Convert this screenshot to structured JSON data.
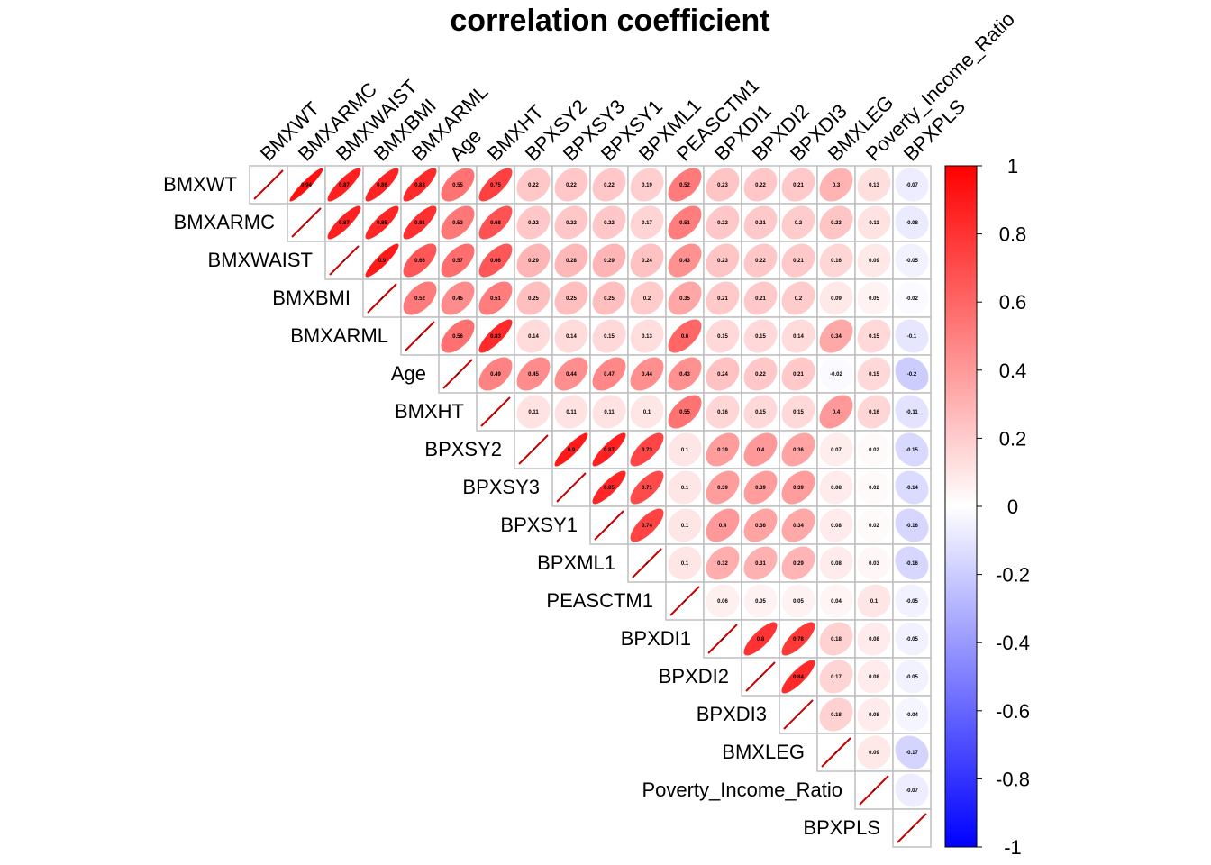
{
  "chart_data": {
    "type": "heatmap",
    "subtype": "correlation-ellipse-upper",
    "title": "correlation coefficient",
    "variables": [
      "BMXWT",
      "BMXARMC",
      "BMXWAIST",
      "BMXBMI",
      "BMXARML",
      "Age",
      "BMXHT",
      "BPXSY2",
      "BPXSY3",
      "BPXSY1",
      "BPXML1",
      "PEASCTM1",
      "BPXDI1",
      "BPXDI2",
      "BPXDI3",
      "BMXLEG",
      "Poverty_Income_Ratio",
      "BPXPLS"
    ],
    "matrix": [
      [
        1,
        0.94,
        0.87,
        0.86,
        0.83,
        0.55,
        0.75,
        0.22,
        0.22,
        0.22,
        0.19,
        0.52,
        0.23,
        0.22,
        0.21,
        0.3,
        0.13,
        -0.07
      ],
      [
        null,
        1,
        0.87,
        0.85,
        0.81,
        0.53,
        0.68,
        0.22,
        0.22,
        0.22,
        0.17,
        0.51,
        0.22,
        0.21,
        0.2,
        0.23,
        0.11,
        -0.08
      ],
      [
        null,
        null,
        1,
        0.9,
        0.66,
        0.57,
        0.66,
        0.29,
        0.28,
        0.29,
        0.24,
        0.43,
        0.23,
        0.22,
        0.21,
        0.16,
        0.09,
        -0.05
      ],
      [
        null,
        null,
        null,
        1,
        0.52,
        0.45,
        0.51,
        0.25,
        0.25,
        0.25,
        0.2,
        0.35,
        0.21,
        0.21,
        0.2,
        0.09,
        0.05,
        -0.02
      ],
      [
        null,
        null,
        null,
        null,
        1,
        0.56,
        0.83,
        0.14,
        0.14,
        0.15,
        0.13,
        0.6,
        0.15,
        0.15,
        0.14,
        0.34,
        0.15,
        -0.1
      ],
      [
        null,
        null,
        null,
        null,
        null,
        1,
        0.49,
        0.45,
        0.44,
        0.47,
        0.44,
        0.43,
        0.24,
        0.22,
        0.21,
        -0.02,
        0.15,
        -0.2
      ],
      [
        null,
        null,
        null,
        null,
        null,
        null,
        1,
        0.11,
        0.11,
        0.11,
        0.1,
        0.55,
        0.16,
        0.15,
        0.15,
        0.4,
        0.16,
        -0.11
      ],
      [
        null,
        null,
        null,
        null,
        null,
        null,
        null,
        1,
        0.9,
        0.87,
        0.73,
        0.1,
        0.39,
        0.4,
        0.36,
        0.07,
        0.02,
        -0.15
      ],
      [
        null,
        null,
        null,
        null,
        null,
        null,
        null,
        null,
        1,
        0.85,
        0.71,
        0.1,
        0.39,
        0.39,
        0.39,
        0.08,
        0.02,
        -0.14
      ],
      [
        null,
        null,
        null,
        null,
        null,
        null,
        null,
        null,
        null,
        1,
        0.74,
        0.1,
        0.4,
        0.36,
        0.34,
        0.08,
        0.02,
        -0.16
      ],
      [
        null,
        null,
        null,
        null,
        null,
        null,
        null,
        null,
        null,
        null,
        1,
        0.1,
        0.32,
        0.31,
        0.29,
        0.08,
        0.03,
        -0.16
      ],
      [
        null,
        null,
        null,
        null,
        null,
        null,
        null,
        null,
        null,
        null,
        null,
        1,
        0.06,
        0.05,
        0.05,
        0.04,
        0.1,
        -0.05
      ],
      [
        null,
        null,
        null,
        null,
        null,
        null,
        null,
        null,
        null,
        null,
        null,
        null,
        1,
        0.8,
        0.78,
        0.18,
        0.08,
        -0.05
      ],
      [
        null,
        null,
        null,
        null,
        null,
        null,
        null,
        null,
        null,
        null,
        null,
        null,
        null,
        1,
        0.84,
        0.17,
        0.08,
        -0.05
      ],
      [
        null,
        null,
        null,
        null,
        null,
        null,
        null,
        null,
        null,
        null,
        null,
        null,
        null,
        null,
        1,
        0.18,
        0.08,
        -0.04
      ],
      [
        null,
        null,
        null,
        null,
        null,
        null,
        null,
        null,
        null,
        null,
        null,
        null,
        null,
        null,
        null,
        1,
        0.09,
        -0.17
      ],
      [
        null,
        null,
        null,
        null,
        null,
        null,
        null,
        null,
        null,
        null,
        null,
        null,
        null,
        null,
        null,
        null,
        1,
        -0.07
      ],
      [
        null,
        null,
        null,
        null,
        null,
        null,
        null,
        null,
        null,
        null,
        null,
        null,
        null,
        null,
        null,
        null,
        null,
        1
      ]
    ],
    "colorbar": {
      "range": [
        -1,
        1
      ],
      "ticks": [
        "1",
        "0.8",
        "0.6",
        "0.4",
        "0.2",
        "0",
        "-0.2",
        "-0.4",
        "-0.6",
        "-0.8",
        "-1"
      ],
      "colors": {
        "positive": "#ff0000",
        "zero": "#ffffff",
        "negative": "#0000ff"
      }
    },
    "legend": "right",
    "grid": true,
    "gridColor": "#bfbfbf",
    "diagonalLineColor": "#cc0000"
  }
}
